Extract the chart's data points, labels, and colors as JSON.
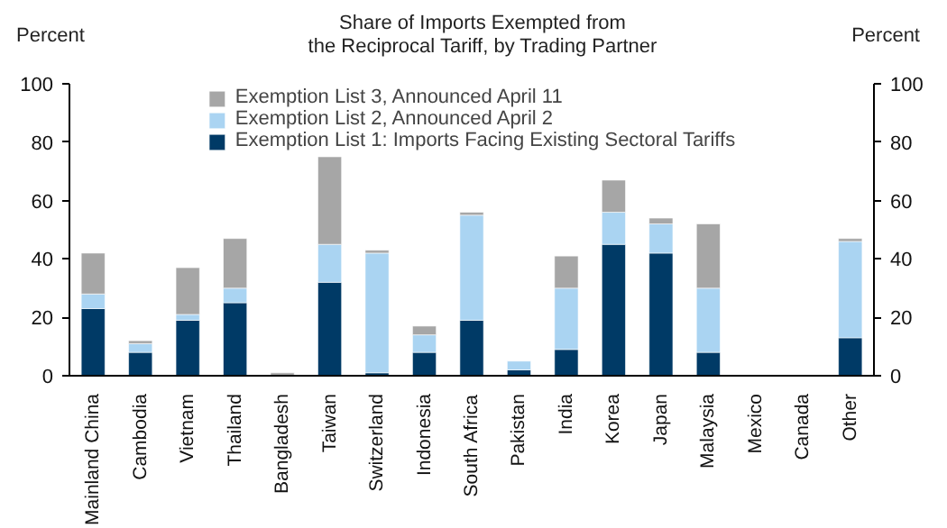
{
  "chart_data": {
    "type": "bar",
    "stacked": true,
    "title": "Share of Imports Exempted from the Reciprocal Tariff, by Trading Partner",
    "ylabel": "Percent",
    "y2label": "Percent",
    "categories": [
      "Mainland China",
      "Cambodia",
      "Vietnam",
      "Thailand",
      "Bangladesh",
      "Taiwan",
      "Switzerland",
      "Indonesia",
      "South Africa",
      "Pakistan",
      "India",
      "Korea",
      "Japan",
      "Malaysia",
      "Mexico",
      "Canada",
      "Other"
    ],
    "series": [
      {
        "name": "Exemption List 1: Imports Facing Existing Sectoral Tariffs",
        "color": "#003a66",
        "values": [
          23,
          8,
          19,
          25,
          0,
          32,
          1,
          8,
          19,
          2,
          9,
          45,
          42,
          8,
          0,
          0,
          13
        ]
      },
      {
        "name": "Exemption List 2, Announced April 2",
        "color": "#aad4f2",
        "values": [
          5,
          3,
          2,
          5,
          0,
          13,
          41,
          6,
          36,
          3,
          21,
          11,
          10,
          22,
          0,
          0,
          33
        ]
      },
      {
        "name": "Exemption List 3, Announced April 11",
        "color": "#a6a6a6",
        "values": [
          14,
          1,
          16,
          17,
          1,
          30,
          1,
          3,
          1,
          0,
          11,
          11,
          2,
          22,
          0,
          0,
          1
        ]
      }
    ],
    "ylim": [
      0,
      100
    ],
    "yticks": [
      0,
      20,
      40,
      60,
      80,
      100
    ],
    "y2lim": [
      0,
      100
    ],
    "y2ticks": [
      0,
      20,
      40,
      60,
      80,
      100
    ],
    "grid": false,
    "legend": "top"
  }
}
